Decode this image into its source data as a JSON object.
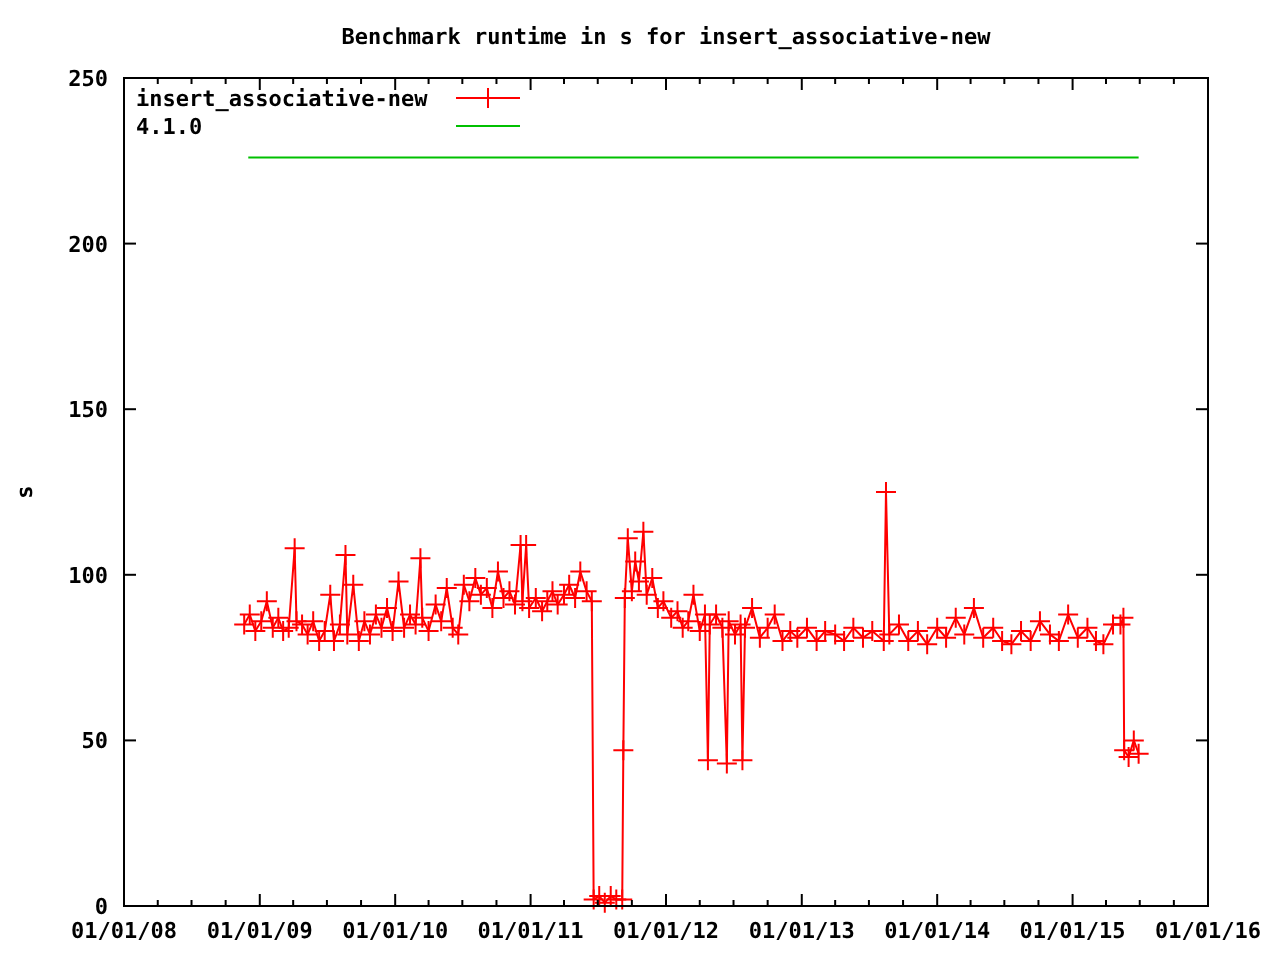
{
  "chart_data": {
    "type": "line",
    "title": "Benchmark runtime in s for insert_associative-new",
    "ylabel": "s",
    "xlim": [
      "2008-01-01",
      "2016-01-01"
    ],
    "xticks": [
      {
        "value": "2008-01-01",
        "label": "01/01/08"
      },
      {
        "value": "2008-04-01",
        "label": null
      },
      {
        "value": "2008-07-01",
        "label": null
      },
      {
        "value": "2008-10-01",
        "label": null
      },
      {
        "value": "2009-01-01",
        "label": "01/01/09"
      },
      {
        "value": "2009-04-01",
        "label": null
      },
      {
        "value": "2009-07-01",
        "label": null
      },
      {
        "value": "2009-10-01",
        "label": null
      },
      {
        "value": "2010-01-01",
        "label": "01/01/10"
      },
      {
        "value": "2010-04-01",
        "label": null
      },
      {
        "value": "2010-07-01",
        "label": null
      },
      {
        "value": "2010-10-01",
        "label": null
      },
      {
        "value": "2011-01-01",
        "label": "01/01/11"
      },
      {
        "value": "2011-04-01",
        "label": null
      },
      {
        "value": "2011-07-01",
        "label": null
      },
      {
        "value": "2011-10-01",
        "label": null
      },
      {
        "value": "2012-01-01",
        "label": "01/01/12"
      },
      {
        "value": "2012-04-01",
        "label": null
      },
      {
        "value": "2012-07-01",
        "label": null
      },
      {
        "value": "2012-10-01",
        "label": null
      },
      {
        "value": "2013-01-01",
        "label": "01/01/13"
      },
      {
        "value": "2013-04-01",
        "label": null
      },
      {
        "value": "2013-07-01",
        "label": null
      },
      {
        "value": "2013-10-01",
        "label": null
      },
      {
        "value": "2014-01-01",
        "label": "01/01/14"
      },
      {
        "value": "2014-04-01",
        "label": null
      },
      {
        "value": "2014-07-01",
        "label": null
      },
      {
        "value": "2014-10-01",
        "label": null
      },
      {
        "value": "2015-01-01",
        "label": "01/01/15"
      },
      {
        "value": "2015-04-01",
        "label": null
      },
      {
        "value": "2015-07-01",
        "label": null
      },
      {
        "value": "2015-10-01",
        "label": null
      },
      {
        "value": "2016-01-01",
        "label": "01/01/16"
      }
    ],
    "ylim": [
      0,
      250
    ],
    "yticks": [
      0,
      50,
      100,
      150,
      200,
      250
    ],
    "grid": false,
    "legend": "top left",
    "series": [
      {
        "name": "insert_associative-new",
        "color": "#ff0000",
        "marker": "cross",
        "x": [
          "2008-11-20",
          "2008-12-05",
          "2008-12-20",
          "2009-01-05",
          "2009-01-20",
          "2009-02-05",
          "2009-02-20",
          "2009-03-05",
          "2009-03-20",
          "2009-04-05",
          "2009-04-10",
          "2009-04-25",
          "2009-05-10",
          "2009-05-25",
          "2009-06-10",
          "2009-06-25",
          "2009-07-10",
          "2009-07-20",
          "2009-08-05",
          "2009-08-20",
          "2009-08-25",
          "2009-09-10",
          "2009-09-25",
          "2009-10-10",
          "2009-10-25",
          "2009-11-10",
          "2009-11-25",
          "2009-12-10",
          "2009-12-25",
          "2010-01-10",
          "2010-01-25",
          "2010-02-10",
          "2010-02-25",
          "2010-03-10",
          "2010-03-15",
          "2010-04-01",
          "2010-04-20",
          "2010-05-05",
          "2010-05-20",
          "2010-06-05",
          "2010-06-20",
          "2010-07-05",
          "2010-07-20",
          "2010-08-05",
          "2010-08-20",
          "2010-09-05",
          "2010-09-20",
          "2010-10-05",
          "2010-10-20",
          "2010-11-05",
          "2010-11-20",
          "2010-12-05",
          "2010-12-10",
          "2010-12-20",
          "2010-12-28",
          "2011-01-15",
          "2011-02-01",
          "2011-02-15",
          "2011-03-01",
          "2011-03-15",
          "2011-04-01",
          "2011-04-15",
          "2011-05-01",
          "2011-05-15",
          "2011-06-01",
          "2011-06-15",
          "2011-06-20",
          "2011-07-05",
          "2011-07-20",
          "2011-08-05",
          "2011-08-20",
          "2011-09-05",
          "2011-09-08",
          "2011-09-12",
          "2011-09-20",
          "2011-10-01",
          "2011-10-10",
          "2011-10-20",
          "2011-11-01",
          "2011-11-10",
          "2011-11-25",
          "2011-12-10",
          "2011-12-25",
          "2012-01-15",
          "2012-02-01",
          "2012-02-15",
          "2012-03-01",
          "2012-03-15",
          "2012-04-01",
          "2012-04-15",
          "2012-04-23",
          "2012-04-28",
          "2012-05-15",
          "2012-06-01",
          "2012-06-13",
          "2012-06-18",
          "2012-07-05",
          "2012-07-20",
          "2012-07-25",
          "2012-08-01",
          "2012-08-20",
          "2012-09-10",
          "2012-10-01",
          "2012-10-20",
          "2012-11-10",
          "2012-12-01",
          "2012-12-20",
          "2013-01-15",
          "2013-02-10",
          "2013-03-05",
          "2013-04-01",
          "2013-04-25",
          "2013-05-20",
          "2013-06-15",
          "2013-07-10",
          "2013-08-10",
          "2013-08-16",
          "2013-08-25",
          "2013-09-20",
          "2013-10-15",
          "2013-11-10",
          "2013-12-05",
          "2014-01-01",
          "2014-01-25",
          "2014-02-20",
          "2014-03-15",
          "2014-04-10",
          "2014-05-05",
          "2014-06-01",
          "2014-06-25",
          "2014-07-20",
          "2014-08-15",
          "2014-09-10",
          "2014-10-05",
          "2014-11-01",
          "2014-11-25",
          "2014-12-20",
          "2015-01-15",
          "2015-02-10",
          "2015-03-05",
          "2015-03-25",
          "2015-04-20",
          "2015-05-10",
          "2015-05-18",
          "2015-05-20",
          "2015-06-01",
          "2015-06-15",
          "2015-06-28"
        ],
        "values": [
          85,
          88,
          83,
          86,
          92,
          84,
          87,
          83,
          84,
          108,
          86,
          85,
          82,
          86,
          80,
          83,
          94,
          80,
          85,
          106,
          82,
          97,
          80,
          86,
          82,
          88,
          84,
          90,
          83,
          98,
          84,
          88,
          85,
          105,
          87,
          83,
          91,
          86,
          96,
          84,
          82,
          97,
          92,
          99,
          94,
          96,
          90,
          101,
          93,
          95,
          91,
          109,
          92,
          109,
          90,
          93,
          89,
          92,
          95,
          91,
          94,
          97,
          93,
          101,
          95,
          92,
          2,
          3,
          1,
          3,
          2,
          2,
          47,
          93,
          111,
          95,
          104,
          98,
          113,
          94,
          99,
          90,
          92,
          87,
          89,
          84,
          86,
          94,
          83,
          88,
          44,
          85,
          88,
          84,
          43,
          86,
          82,
          85,
          44,
          84,
          90,
          81,
          84,
          88,
          80,
          83,
          81,
          84,
          80,
          83,
          82,
          80,
          84,
          81,
          83,
          80,
          125,
          82,
          85,
          80,
          83,
          79,
          84,
          81,
          87,
          82,
          90,
          81,
          84,
          80,
          79,
          83,
          80,
          86,
          82,
          80,
          88,
          81,
          84,
          80,
          79,
          85,
          85,
          87,
          47,
          45,
          50,
          46
        ]
      },
      {
        "name": "4.1.0",
        "color": "#00c000",
        "marker": "none",
        "x": [
          "2008-12-01",
          "2015-06-28"
        ],
        "values": [
          226,
          226
        ]
      }
    ]
  }
}
